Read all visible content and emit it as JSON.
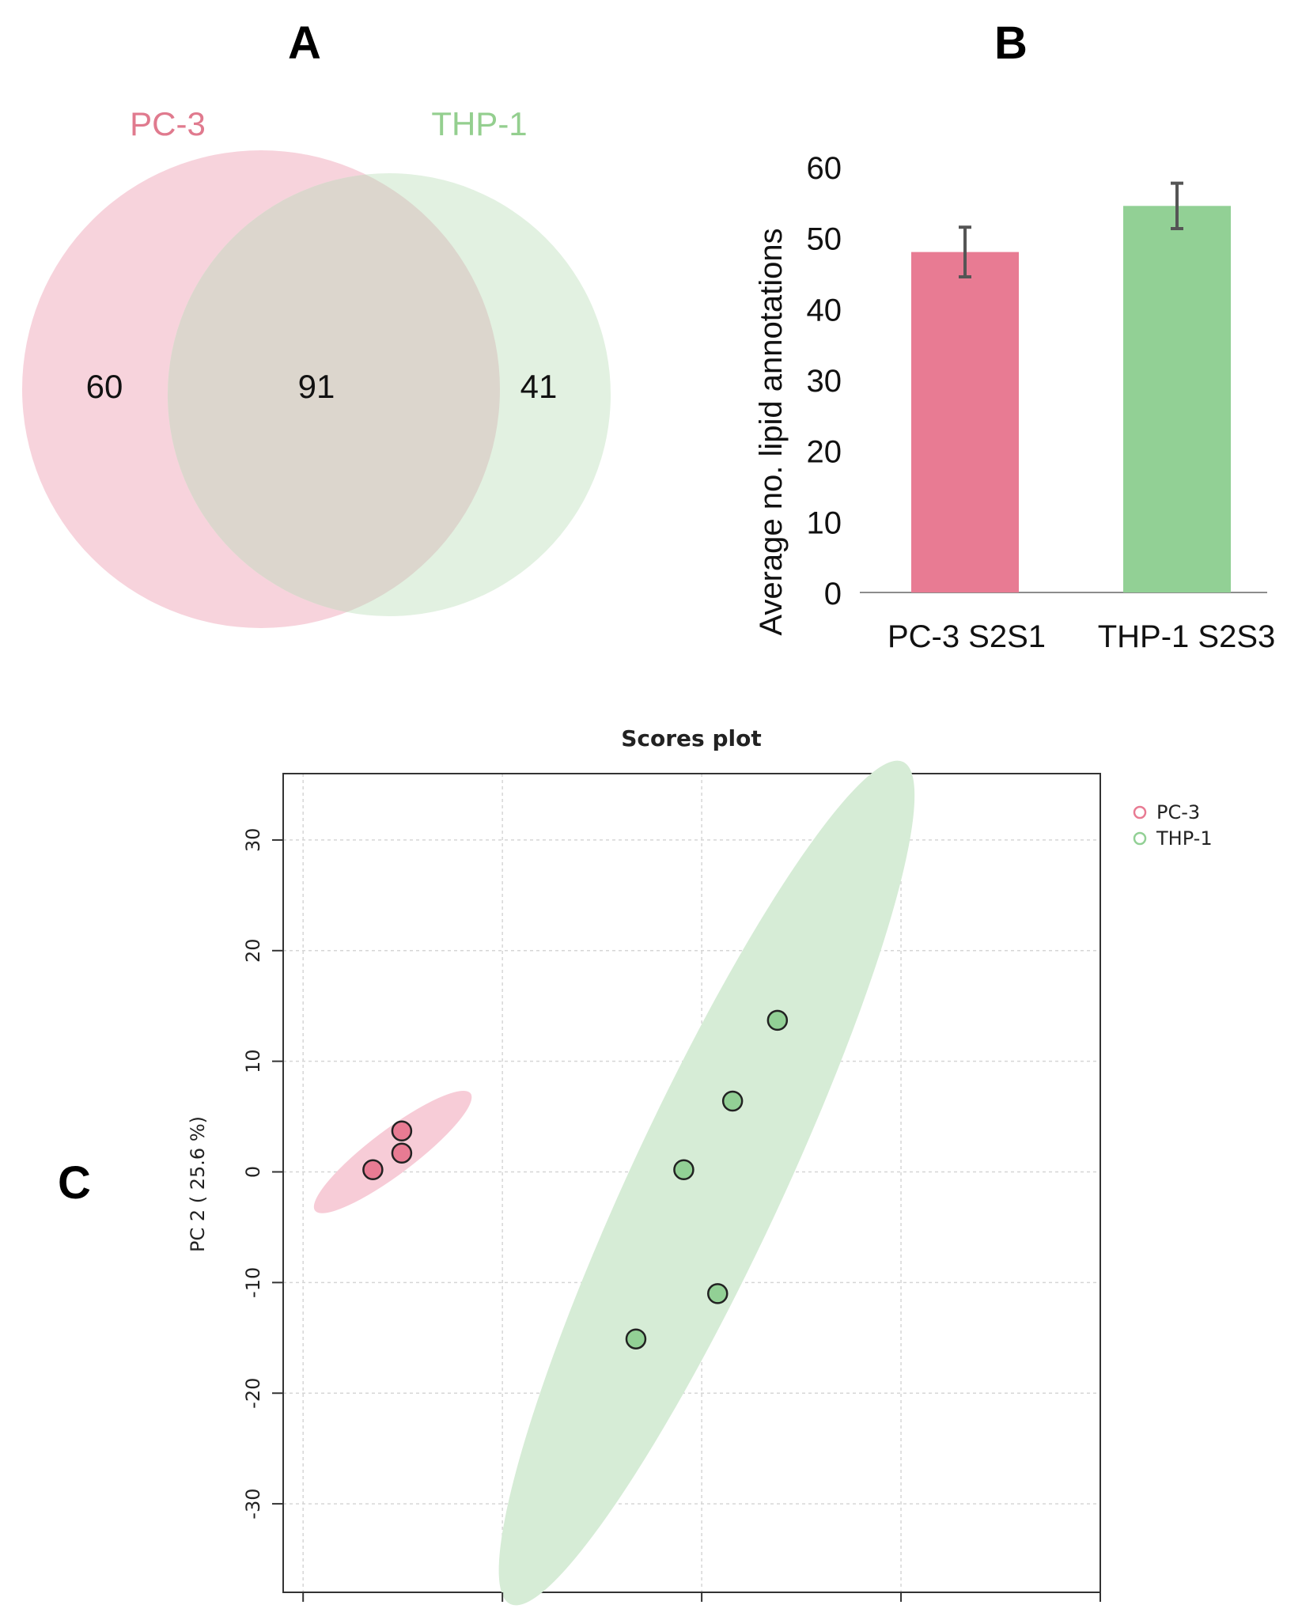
{
  "chart_data": [
    {
      "panel": "A",
      "type": "venn",
      "sets": [
        {
          "name": "PC-3",
          "color": "#f7d3dc",
          "label_color": "#e07a8e"
        },
        {
          "name": "THP-1",
          "color": "#e2f1e1",
          "label_color": "#94cf8f"
        }
      ],
      "overlap_color": "#dcd6cd",
      "regions": {
        "only_a": 60,
        "both": 91,
        "only_b": 41
      }
    },
    {
      "panel": "B",
      "type": "bar",
      "categories": [
        "PC-3 S2S1",
        "THP-1 S2S3"
      ],
      "values": [
        48,
        54.5
      ],
      "errors": [
        3.5,
        3.2
      ],
      "colors": [
        "#e87b93",
        "#92d095"
      ],
      "ylabel": "Average no. lipid annotations",
      "ylim": [
        0,
        60
      ],
      "yticks": [
        0,
        10,
        20,
        30,
        40,
        50,
        60
      ]
    },
    {
      "panel": "C",
      "type": "scatter",
      "title": "Scores plot",
      "ylabel": "PC 2 ( 25.6 %)",
      "xlim": [
        -37,
        45
      ],
      "ylim": [
        -38,
        36
      ],
      "yticks": [
        30,
        20,
        10,
        0,
        -10,
        -20,
        -30
      ],
      "xgrid": [
        -35,
        -15,
        5,
        25,
        45
      ],
      "series": [
        {
          "name": "PC-3",
          "color": "#e87b93",
          "ellipse_color": "#f7ccd7",
          "points": [
            {
              "x": -28,
              "y": 0.2
            },
            {
              "x": -25.1,
              "y": 1.7
            },
            {
              "x": -25.1,
              "y": 3.7
            }
          ]
        },
        {
          "name": "THP-1",
          "color": "#92d095",
          "ellipse_color": "#d6ecd6",
          "points": [
            {
              "x": 12.6,
              "y": 13.7
            },
            {
              "x": 8.1,
              "y": 6.4
            },
            {
              "x": 3.2,
              "y": 0.2
            },
            {
              "x": 6.6,
              "y": -11
            },
            {
              "x": -1.6,
              "y": -15.1
            }
          ]
        }
      ],
      "legend": [
        "PC-3",
        "THP-1"
      ]
    }
  ]
}
